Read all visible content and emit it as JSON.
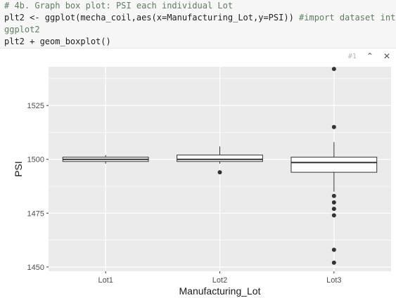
{
  "code": {
    "line1": "# 4b. Graph box plot: PSI each individual Lot",
    "line2_code": "plt2 <- ggplot(mecha_coil,aes(x=Manufacturing_Lot,y=PSI)) ",
    "line2_comment": "#import dataset into",
    "line3": "ggplot2",
    "line4": "plt2 + geom_boxplot()"
  },
  "chunk_toolbar": {
    "chunk_number": "#1",
    "collapse_icon": "double-chevron-up-icon",
    "close_icon": "close-icon"
  },
  "chart_data": {
    "type": "boxplot",
    "xlabel": "Manufacturing_Lot",
    "ylabel": "PSI",
    "categories": [
      "Lot1",
      "Lot2",
      "Lot3"
    ],
    "ylim": [
      1448,
      1543
    ],
    "yticks": [
      1450,
      1475,
      1500,
      1525
    ],
    "grid": true,
    "panel_color": "#ebebeb",
    "boxes": [
      {
        "category": "Lot1",
        "lower_whisker": 1498,
        "q1": 1499,
        "median": 1500,
        "q3": 1501,
        "upper_whisker": 1502,
        "outliers": []
      },
      {
        "category": "Lot2",
        "lower_whisker": 1498,
        "q1": 1499,
        "median": 1500,
        "q3": 1502,
        "upper_whisker": 1506,
        "outliers": [
          1494
        ]
      },
      {
        "category": "Lot3",
        "lower_whisker": 1485,
        "q1": 1494,
        "median": 1498.5,
        "q3": 1501,
        "upper_whisker": 1508,
        "outliers": [
          1542,
          1515,
          1483,
          1480,
          1477,
          1474,
          1458,
          1452
        ]
      }
    ]
  }
}
